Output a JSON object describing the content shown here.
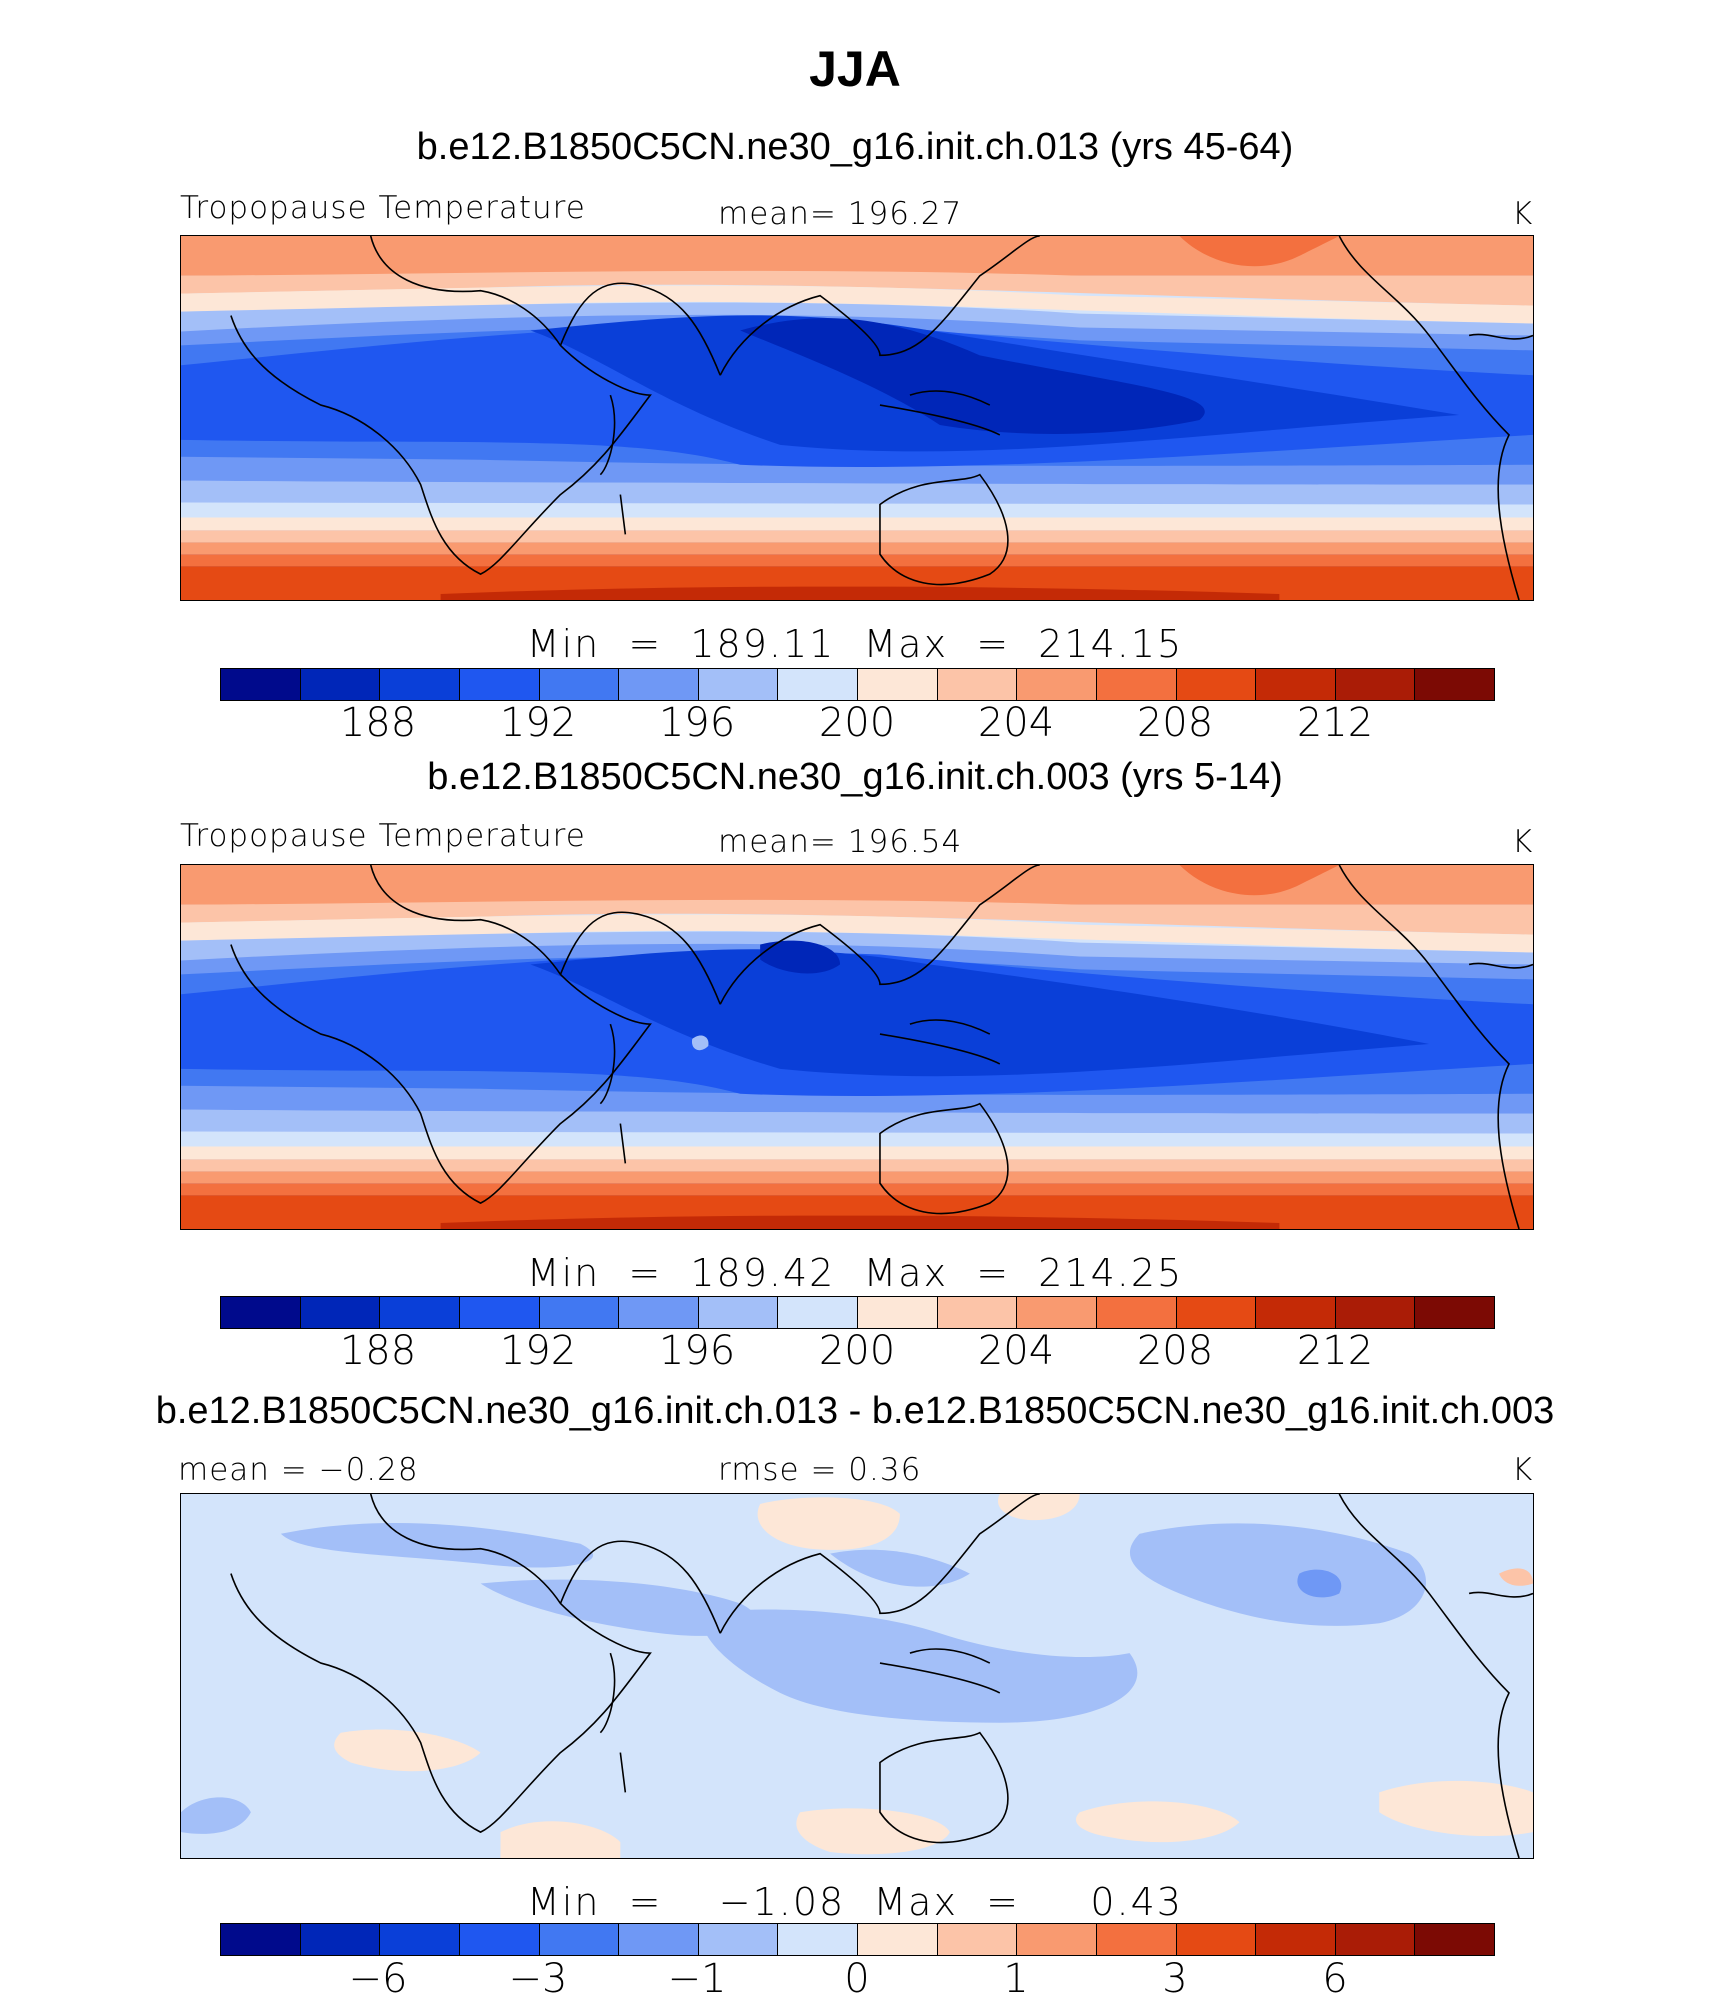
{
  "season": "JJA",
  "palette": [
    "#000a8c",
    "#0026b8",
    "#0a3fd8",
    "#1f57f0",
    "#4178f2",
    "#6f98f5",
    "#a3bff8",
    "#d3e4fb",
    "#fde7d7",
    "#fcc4a8",
    "#f99a70",
    "#f3703f",
    "#e54a14",
    "#c42a06",
    "#aa1c06",
    "#7c0a04"
  ],
  "panels": [
    {
      "run_title": "b.e12.B1850C5CN.ne30_g16.init.ch.013 (yrs 45-64)",
      "label_left": "Tropopause  Temperature",
      "label_center": "mean=  196.27",
      "units": "K",
      "minmax": "Min  =  189.11  Max  =  214.15",
      "ticks": [
        "188",
        "192",
        "196",
        "200",
        "204",
        "208",
        "212"
      ]
    },
    {
      "run_title": "b.e12.B1850C5CN.ne30_g16.init.ch.003 (yrs 5-14)",
      "label_left": "Tropopause  Temperature",
      "label_center": "mean=  196.54",
      "units": "K",
      "minmax": "Min  =  189.42  Max  =  214.25",
      "ticks": [
        "188",
        "192",
        "196",
        "200",
        "204",
        "208",
        "212"
      ]
    },
    {
      "run_title": "b.e12.B1850C5CN.ne30_g16.init.ch.013 - b.e12.B1850C5CN.ne30_g16.init.ch.003",
      "label_left": "mean  =   −0.28",
      "label_center": "rmse  =     0.36",
      "units": "K",
      "minmax": "Min  =    −1.08  Max  =     0.43",
      "ticks": [
        "−6",
        "−3",
        "−1",
        "0",
        "1",
        "3",
        "6"
      ]
    }
  ]
}
